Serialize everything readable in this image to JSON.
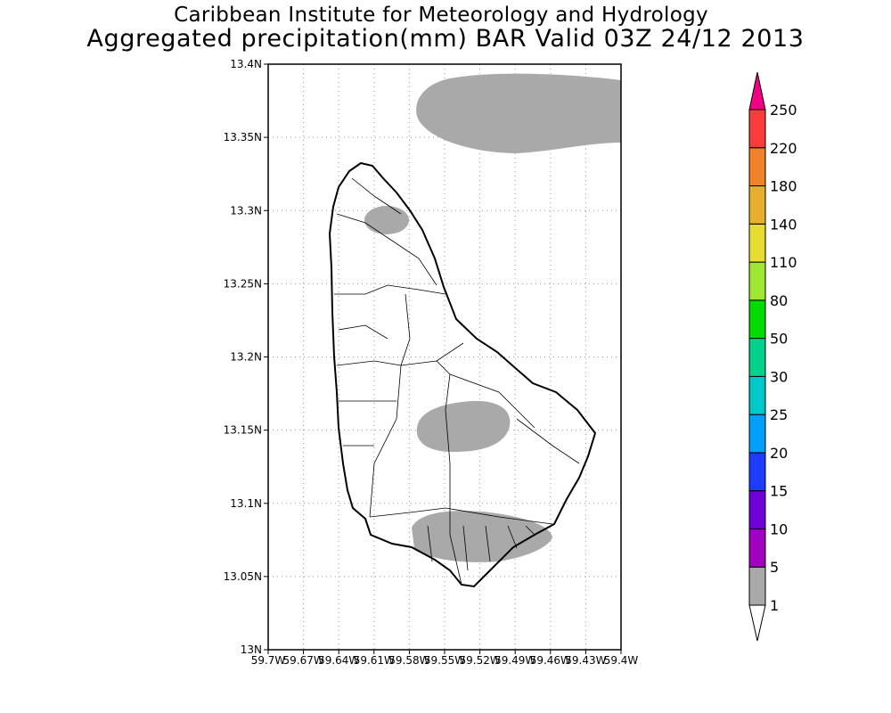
{
  "title": {
    "line1": "Caribbean Institute for Meteorology and Hydrology",
    "line2": "Aggregated precipitation(mm) BAR Valid 03Z 24/12 2013"
  },
  "map": {
    "lon_range": [
      -59.7,
      -59.4
    ],
    "lat_range": [
      13.0,
      13.4
    ],
    "x_ticks": [
      "59.7W",
      "59.67W",
      "59.64W",
      "59.61W",
      "59.58W",
      "59.55W",
      "59.52W",
      "59.49W",
      "59.46W",
      "59.43W",
      "59.4W"
    ],
    "y_ticks": [
      "13N",
      "13.05N",
      "13.1N",
      "13.15N",
      "13.2N",
      "13.25N",
      "13.3N",
      "13.35N",
      "13.4N"
    ],
    "shaded_category": "1-5 mm"
  },
  "colorbar": {
    "labels": [
      "1",
      "5",
      "10",
      "15",
      "20",
      "25",
      "30",
      "50",
      "80",
      "110",
      "140",
      "180",
      "220",
      "250"
    ],
    "colors": [
      "#a9a9a9",
      "#a000c0",
      "#7000d8",
      "#1e3cff",
      "#00a0ff",
      "#00c8c8",
      "#00d28c",
      "#00dc00",
      "#a0e632",
      "#e6dc32",
      "#e6af2d",
      "#f08228",
      "#fa3c3c",
      "#f00082"
    ],
    "under_color": "#ffffff"
  }
}
